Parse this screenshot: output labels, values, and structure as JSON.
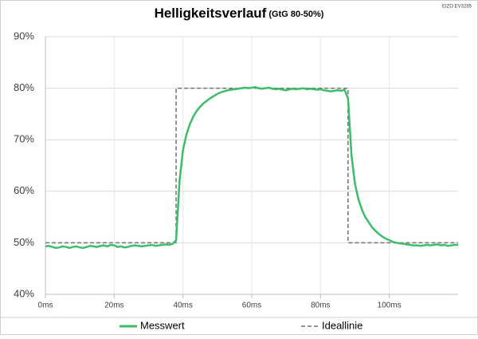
{
  "chart_data": {
    "type": "line",
    "title": "Helligkeitsverlauf",
    "subtitle": "(GtG 80-50%)",
    "annotation": "EIZO EV3285",
    "xlim": [
      0,
      120
    ],
    "ylim": [
      40,
      90
    ],
    "xticks": [
      {
        "value": 0,
        "label": "0ms"
      },
      {
        "value": 20,
        "label": "20ms"
      },
      {
        "value": 40,
        "label": "40ms"
      },
      {
        "value": 60,
        "label": "60ms"
      },
      {
        "value": 80,
        "label": "80ms"
      },
      {
        "value": 100,
        "label": "100ms"
      }
    ],
    "yticks": [
      {
        "value": 40,
        "label": "40%"
      },
      {
        "value": 50,
        "label": "50%"
      },
      {
        "value": 60,
        "label": "60%"
      },
      {
        "value": 70,
        "label": "70%"
      },
      {
        "value": 80,
        "label": "80%"
      },
      {
        "value": 90,
        "label": "90%"
      }
    ],
    "grid": true,
    "legend": "bottom",
    "series": [
      {
        "name": "Messwert",
        "color": "#3dbd6a",
        "dash": false,
        "x": [
          0,
          1,
          2,
          3,
          4,
          5,
          6,
          7,
          8,
          9,
          10,
          11,
          12,
          13,
          14,
          15,
          16,
          17,
          18,
          19,
          20,
          21,
          22,
          23,
          24,
          25,
          26,
          27,
          28,
          29,
          30,
          31,
          32,
          33,
          34,
          35,
          36,
          37,
          38,
          39,
          40,
          41,
          42,
          43,
          44,
          45,
          46,
          47,
          48,
          49,
          50,
          51,
          52,
          53,
          54,
          55,
          56,
          57,
          58,
          59,
          60,
          61,
          62,
          63,
          64,
          65,
          66,
          67,
          68,
          69,
          70,
          71,
          72,
          73,
          74,
          75,
          76,
          77,
          78,
          79,
          80,
          81,
          82,
          83,
          84,
          85,
          86,
          87,
          88,
          89,
          90,
          91,
          92,
          93,
          94,
          95,
          96,
          97,
          98,
          99,
          100,
          101,
          102,
          103,
          104,
          105,
          106,
          107,
          108,
          109,
          110,
          111,
          112,
          113,
          114,
          115,
          116,
          117,
          118,
          119,
          120
        ],
        "values": [
          49.3,
          49.4,
          49.2,
          49.0,
          49.1,
          49.3,
          49.2,
          49.0,
          49.2,
          49.3,
          49.1,
          49.0,
          49.2,
          49.4,
          49.3,
          49.2,
          49.4,
          49.5,
          49.3,
          49.6,
          49.5,
          49.2,
          49.3,
          49.1,
          49.2,
          49.4,
          49.5,
          49.4,
          49.3,
          49.4,
          49.5,
          49.6,
          49.4,
          49.5,
          49.6,
          49.7,
          49.6,
          49.8,
          50.5,
          62,
          68,
          71,
          73,
          74.5,
          75.6,
          76.4,
          77.1,
          77.6,
          78.1,
          78.5,
          78.9,
          79.2,
          79.4,
          79.6,
          79.7,
          79.8,
          79.9,
          80.0,
          80.1,
          80.0,
          80.1,
          80.2,
          80.0,
          79.9,
          80.0,
          80.1,
          79.9,
          79.8,
          79.9,
          79.7,
          79.6,
          79.8,
          79.9,
          79.8,
          79.9,
          80.0,
          79.8,
          79.9,
          79.8,
          79.7,
          79.8,
          79.6,
          79.5,
          79.4,
          79.5,
          79.6,
          79.5,
          79.7,
          78,
          67,
          61.5,
          58.5,
          56.5,
          55,
          54,
          53,
          52.3,
          51.7,
          51.2,
          50.8,
          50.5,
          50.2,
          50.0,
          49.9,
          49.8,
          49.7,
          49.6,
          49.5,
          49.5,
          49.4,
          49.5,
          49.6,
          49.5,
          49.6,
          49.7,
          49.5,
          49.6,
          49.4,
          49.5,
          49.6,
          49.6
        ]
      },
      {
        "name": "Ideallinie",
        "color": "#707070",
        "dash": true,
        "x": [
          0,
          38,
          38,
          88,
          88,
          120
        ],
        "values": [
          50,
          50,
          80,
          80,
          50,
          50
        ]
      }
    ]
  }
}
